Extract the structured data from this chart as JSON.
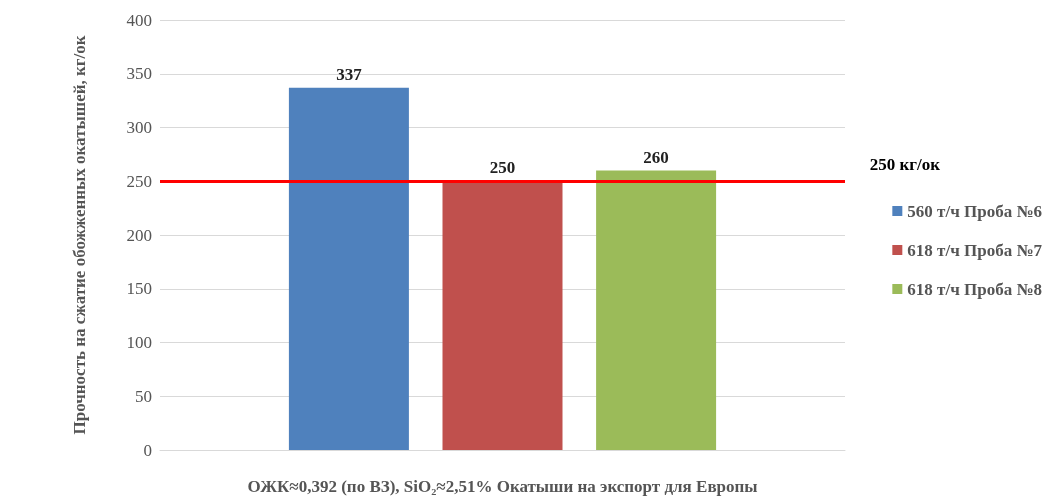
{
  "chart_data": {
    "type": "bar",
    "xlabel": "ОЖК≈0,392 (по ВЗ), SiO₂≈2,51% Окатыши на экспорт для Европы",
    "ylabel": "Прочность на сжатие обожженных окатышей, кг/ок",
    "categories": [
      null
    ],
    "series": [
      {
        "name": "560 т/ч Проба №6",
        "color": "#4f81bd",
        "values": [
          337
        ]
      },
      {
        "name": "618 т/ч Проба №7",
        "color": "#c0504d",
        "values": [
          250
        ]
      },
      {
        "name": "618 т/ч Проба №8",
        "color": "#9bbb59",
        "values": [
          260
        ]
      }
    ],
    "ylim": [
      0,
      400
    ],
    "yticks": [
      0,
      50,
      100,
      150,
      200,
      250,
      300,
      350,
      400
    ],
    "grid": "y",
    "legend": "right",
    "data_labels": true,
    "ref_lines": [
      {
        "axis": "y",
        "value": 250,
        "label": "250 кг/ок",
        "color": "#ff0000"
      }
    ]
  }
}
